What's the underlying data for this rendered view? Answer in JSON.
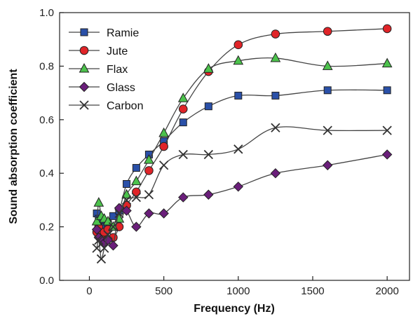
{
  "chart_data": {
    "type": "line",
    "title": "",
    "xlabel": "Frequency (Hz)",
    "ylabel": "Sound absorption coefficient",
    "xlim": [
      -200,
      2150
    ],
    "ylim": [
      0,
      1.0
    ],
    "x_ticks": [
      0,
      500,
      1000,
      1500,
      2000
    ],
    "x_tick_labels": [
      "0",
      "500",
      "1000",
      "1500",
      "2000"
    ],
    "y_ticks": [
      0,
      0.2,
      0.4,
      0.6,
      0.8,
      1.0
    ],
    "y_tick_labels": [
      "0.0",
      "0.2",
      "0.4",
      "0.6",
      "0.8",
      "1.0"
    ],
    "grid": false,
    "legend_position": "top-left",
    "series": [
      {
        "name": "Ramie",
        "marker": "square",
        "color": "#2a50a8",
        "points": [
          [
            50,
            0.25
          ],
          [
            63,
            0.23
          ],
          [
            80,
            0.22
          ],
          [
            100,
            0.2
          ],
          [
            125,
            0.21
          ],
          [
            160,
            0.24
          ],
          [
            200,
            0.26
          ],
          [
            250,
            0.36
          ],
          [
            315,
            0.42
          ],
          [
            400,
            0.47
          ],
          [
            500,
            0.52
          ],
          [
            630,
            0.59
          ],
          [
            800,
            0.65
          ],
          [
            1000,
            0.69
          ],
          [
            1250,
            0.69
          ],
          [
            1600,
            0.71
          ],
          [
            2000,
            0.71
          ]
        ]
      },
      {
        "name": "Jute",
        "marker": "circle",
        "color": "#e02428",
        "points": [
          [
            50,
            0.18
          ],
          [
            63,
            0.2
          ],
          [
            80,
            0.17
          ],
          [
            100,
            0.18
          ],
          [
            125,
            0.19
          ],
          [
            160,
            0.16
          ],
          [
            200,
            0.2
          ],
          [
            250,
            0.28
          ],
          [
            315,
            0.33
          ],
          [
            400,
            0.41
          ],
          [
            500,
            0.5
          ],
          [
            630,
            0.64
          ],
          [
            800,
            0.78
          ],
          [
            1000,
            0.88
          ],
          [
            1250,
            0.92
          ],
          [
            1600,
            0.93
          ],
          [
            2000,
            0.94
          ]
        ]
      },
      {
        "name": "Flax",
        "marker": "triangle",
        "color": "#4cc24c",
        "points": [
          [
            50,
            0.22
          ],
          [
            63,
            0.29
          ],
          [
            80,
            0.24
          ],
          [
            100,
            0.23
          ],
          [
            125,
            0.22
          ],
          [
            160,
            0.2
          ],
          [
            200,
            0.23
          ],
          [
            250,
            0.32
          ],
          [
            315,
            0.37
          ],
          [
            400,
            0.45
          ],
          [
            500,
            0.55
          ],
          [
            630,
            0.68
          ],
          [
            800,
            0.79
          ],
          [
            1000,
            0.82
          ],
          [
            1250,
            0.83
          ],
          [
            1600,
            0.8
          ],
          [
            2000,
            0.81
          ]
        ]
      },
      {
        "name": "Glass",
        "marker": "diamond",
        "color": "#6a1e7a",
        "points": [
          [
            50,
            0.19
          ],
          [
            63,
            0.16
          ],
          [
            80,
            0.15
          ],
          [
            100,
            0.14
          ],
          [
            125,
            0.15
          ],
          [
            160,
            0.13
          ],
          [
            200,
            0.27
          ],
          [
            250,
            0.26
          ],
          [
            315,
            0.2
          ],
          [
            400,
            0.25
          ],
          [
            500,
            0.25
          ],
          [
            630,
            0.31
          ],
          [
            800,
            0.32
          ],
          [
            1000,
            0.35
          ],
          [
            1250,
            0.4
          ],
          [
            1600,
            0.43
          ],
          [
            2000,
            0.47
          ]
        ]
      },
      {
        "name": "Carbon",
        "marker": "x",
        "color": "#333333",
        "points": [
          [
            50,
            0.12
          ],
          [
            63,
            0.15
          ],
          [
            80,
            0.08
          ],
          [
            100,
            0.12
          ],
          [
            125,
            0.17
          ],
          [
            160,
            0.2
          ],
          [
            200,
            0.25
          ],
          [
            250,
            0.3
          ],
          [
            315,
            0.31
          ],
          [
            400,
            0.32
          ],
          [
            500,
            0.43
          ],
          [
            630,
            0.47
          ],
          [
            800,
            0.47
          ],
          [
            1000,
            0.49
          ],
          [
            1250,
            0.57
          ],
          [
            1600,
            0.56
          ],
          [
            2000,
            0.56
          ]
        ]
      }
    ]
  }
}
